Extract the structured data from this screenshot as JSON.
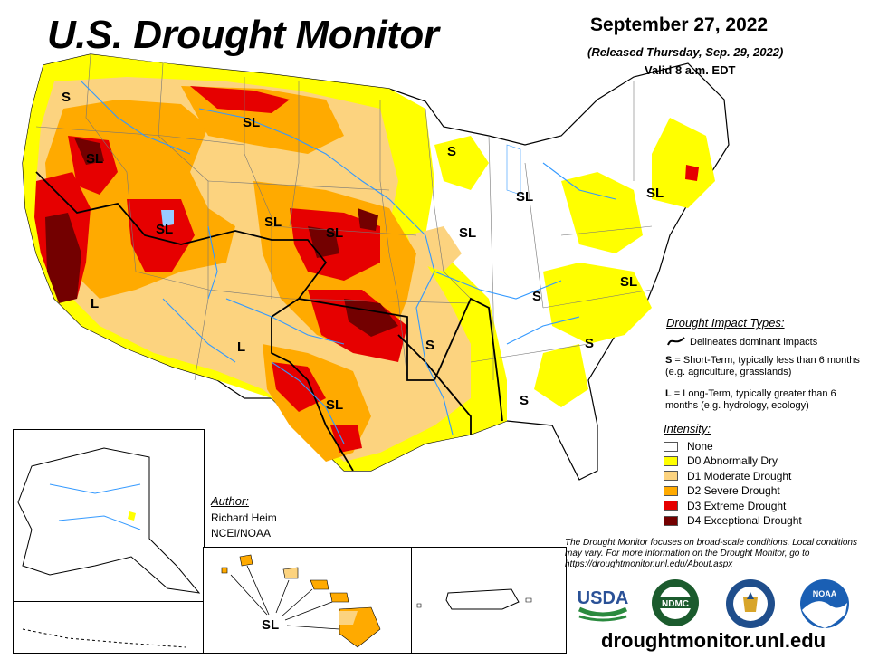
{
  "header": {
    "title": "U.S. Drought Monitor",
    "date": "September 27, 2022",
    "released": "(Released Thursday, Sep. 29, 2022)",
    "valid": "Valid 8 a.m. EDT"
  },
  "map_labels": [
    "S",
    "SL",
    "SL",
    "SL",
    "SL",
    "SL",
    "L",
    "S",
    "SL",
    "SL",
    "S",
    "SL",
    "L",
    "S",
    "S",
    "SL",
    "S",
    "SL"
  ],
  "impact_types": {
    "heading": "Drought Impact Types:",
    "line_label": "Delineates dominant impacts",
    "s_code": "S",
    "s_desc": " = Short-Term, typically less than 6 months (e.g. agriculture, grasslands)",
    "l_code": "L",
    "l_desc": " = Long-Term, typically greater than 6 months (e.g. hydrology, ecology)"
  },
  "intensity": {
    "heading": "Intensity:",
    "levels": [
      {
        "label": "None",
        "color": "#ffffff"
      },
      {
        "label": "D0 Abnormally Dry",
        "color": "#ffff00"
      },
      {
        "label": "D1 Moderate Drought",
        "color": "#fcd37f"
      },
      {
        "label": "D2 Severe Drought",
        "color": "#ffaa00"
      },
      {
        "label": "D3 Extreme Drought",
        "color": "#e60000"
      },
      {
        "label": "D4 Exceptional Drought",
        "color": "#730000"
      }
    ]
  },
  "author": {
    "heading": "Author:",
    "name": "Richard Heim",
    "org": "NCEI/NOAA"
  },
  "disclaimer": "The Drought Monitor focuses on broad-scale conditions. Local conditions may vary. For more information on the Drought Monitor, go to https://droughtmonitor.unl.edu/About.aspx",
  "website": "droughtmonitor.unl.edu",
  "logos": {
    "usda": "USDA",
    "ndmc": "NDMC",
    "noaa": "NOAA"
  },
  "colors": {
    "water": "#3399ff",
    "border": "#000000",
    "state_line": "#888888"
  }
}
